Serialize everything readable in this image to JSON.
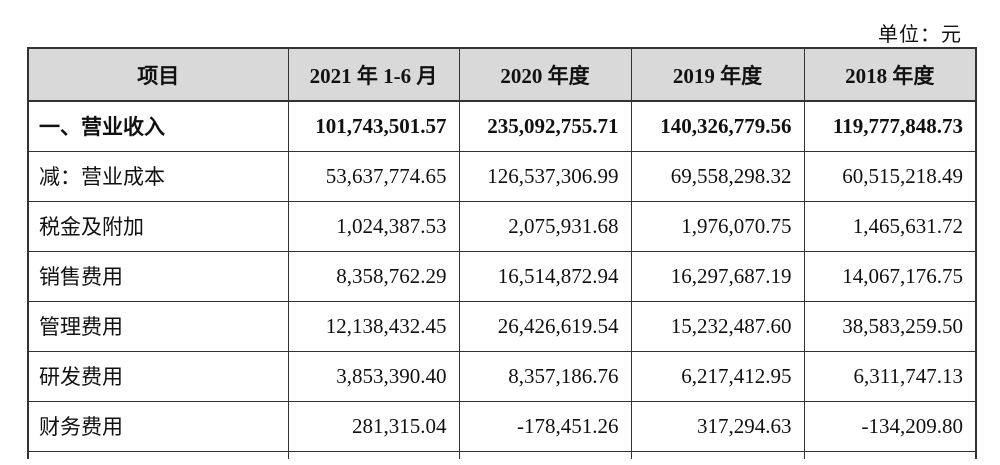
{
  "unit_label": "单位：元",
  "table": {
    "header": [
      "项目",
      "2021 年 1-6 月",
      "2020 年度",
      "2019 年度",
      "2018 年度"
    ],
    "rows": [
      [
        "一、营业收入",
        "101,743,501.57",
        "235,092,755.71",
        "140,326,779.56",
        "119,777,848.73"
      ],
      [
        "减：营业成本",
        "53,637,774.65",
        "126,537,306.99",
        "69,558,298.32",
        "60,515,218.49"
      ],
      [
        "税金及附加",
        "1,024,387.53",
        "2,075,931.68",
        "1,976,070.75",
        "1,465,631.72"
      ],
      [
        "销售费用",
        "8,358,762.29",
        "16,514,872.94",
        "16,297,687.19",
        "14,067,176.75"
      ],
      [
        "管理费用",
        "12,138,432.45",
        "26,426,619.54",
        "15,232,487.60",
        "38,583,259.50"
      ],
      [
        "研发费用",
        "3,853,390.40",
        "8,357,186.76",
        "6,217,412.95",
        "6,311,747.13"
      ],
      [
        "财务费用",
        "281,315.04",
        "-178,451.26",
        "317,294.63",
        "-134,209.80"
      ]
    ]
  }
}
